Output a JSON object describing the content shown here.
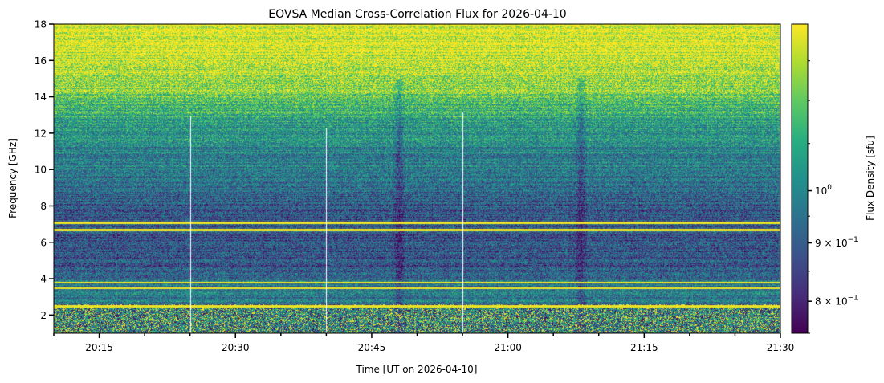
{
  "chart_data": {
    "type": "heatmap",
    "title": "EOVSA Median Cross-Correlation Flux for 2026-04-10",
    "xlabel": "Time [UT on 2026-04-10]",
    "ylabel": "Frequency [GHz]",
    "colorbar_label": "Flux Density [sfu]",
    "colormap": "viridis",
    "colorbar_scale": "log",
    "x_range": [
      "20:10",
      "21:30"
    ],
    "x_ticks": [
      "20:15",
      "20:30",
      "20:45",
      "21:00",
      "21:15",
      "21:30"
    ],
    "y_range": [
      1,
      18
    ],
    "y_ticks": [
      2,
      4,
      6,
      8,
      10,
      12,
      14,
      16,
      18
    ],
    "colorbar_ticks": [
      {
        "value": 1.0,
        "base": "10",
        "exp": "0",
        "mult": ""
      },
      {
        "value": 0.9,
        "base": "10",
        "exp": "−1",
        "mult": "9 × "
      },
      {
        "value": 0.8,
        "base": "10",
        "exp": "−1",
        "mult": "8 × "
      }
    ],
    "colorbar_range": [
      0.75,
      1.4
    ],
    "spectral_features": {
      "strong_rfi_frequencies_ghz": [
        7.1,
        6.7,
        3.8,
        3.5,
        2.5
      ],
      "dark_vertical_bands_times": [
        "20:48",
        "21:08"
      ],
      "white_vertical_lines_times": [
        "20:25",
        "20:40",
        "20:55"
      ]
    }
  }
}
